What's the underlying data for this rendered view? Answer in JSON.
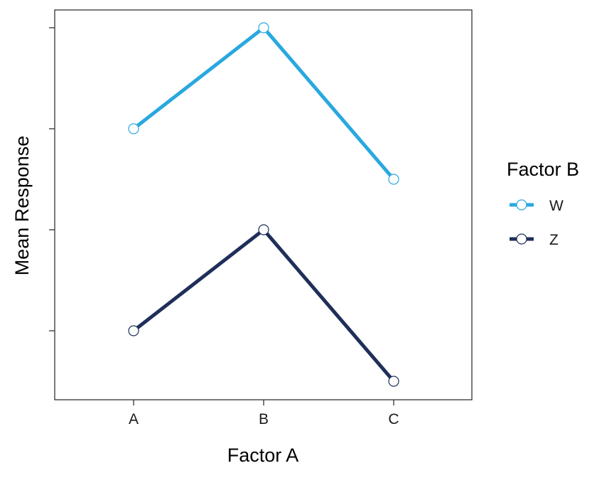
{
  "chart_data": {
    "type": "line",
    "xlabel": "Factor A",
    "ylabel": "Mean Response",
    "categories": [
      "A",
      "B",
      "C"
    ],
    "y_ticks": [
      1,
      2,
      3,
      4
    ],
    "y_tick_labels_shown": false,
    "ylim": [
      0.5,
      4.35
    ],
    "grid": false,
    "legend": {
      "title": "Factor B",
      "placement": "right"
    },
    "series": [
      {
        "name": "W",
        "values": [
          3.0,
          4.0,
          2.5
        ],
        "color": "#29a8df"
      },
      {
        "name": "Z",
        "values": [
          1.0,
          2.0,
          0.5
        ],
        "color": "#1f2f5a"
      }
    ]
  }
}
